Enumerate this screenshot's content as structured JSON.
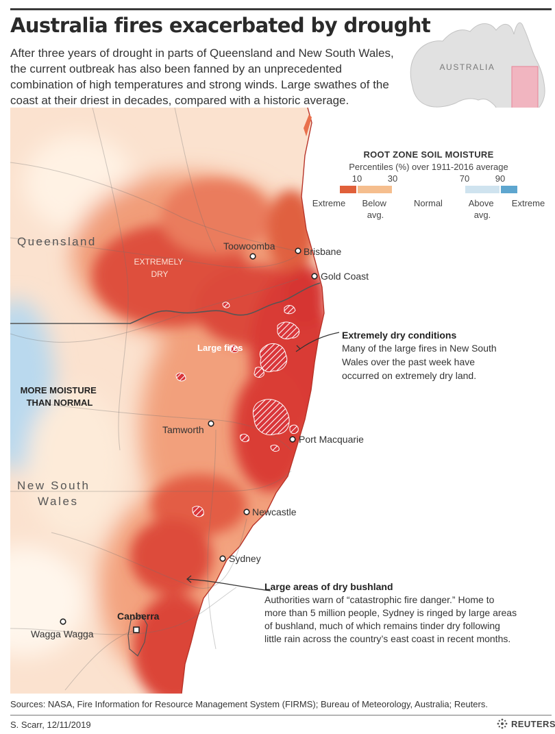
{
  "header": {
    "title": "Australia fires exacerbated by drought",
    "intro": "After three years of drought in parts of Queensland and New South Wales, the current outbreak has also been fanned by an unprecedented combination of high temperatures and strong winds. Large swathes of the coast at their driest in decades, compared with a historic average."
  },
  "inset_map": {
    "label": "AUSTRALIA",
    "highlight_color": "#f6a6b4"
  },
  "legend": {
    "title": "ROOT ZONE SOIL MOISTURE",
    "subtitle": "Percentiles (%) over 1911-2016 average",
    "ticks": [
      "10",
      "30",
      "70",
      "90"
    ],
    "categories": [
      {
        "lines": [
          "Extreme"
        ],
        "color": "#e0603a"
      },
      {
        "lines": [
          "Below",
          "avg."
        ],
        "color": "#f5be8e"
      },
      {
        "lines": [
          "Normal"
        ],
        "color": "#ffffff"
      },
      {
        "lines": [
          "Above",
          "avg."
        ],
        "color": "#cfe3ef"
      },
      {
        "lines": [
          "Extreme"
        ],
        "color": "#5ea6cf"
      }
    ]
  },
  "map": {
    "regions": [
      {
        "text": "Queensland"
      },
      {
        "lines": [
          "New South",
          "Wales"
        ]
      }
    ],
    "zone_labels": [
      {
        "lines": [
          "EXTREMELY",
          "DRY"
        ]
      },
      {
        "lines": [
          "MORE MOISTURE",
          "THAN NORMAL"
        ]
      }
    ],
    "fires_label": "Large fires",
    "cities": [
      "Toowoomba",
      "Brisbane",
      "Gold Coast",
      "Tamworth",
      "Port Macquarie",
      "Newcastle",
      "Sydney",
      "Wagga Wagga",
      "Canberra"
    ],
    "callouts": [
      {
        "title": "Extremely dry conditions",
        "lines": [
          "Many of the large fires in New South",
          "Wales over the past week have",
          "occurred on extremely dry land."
        ]
      },
      {
        "title": "Large areas of dry bushland",
        "lines": [
          "Authorities warn of “catastrophic fire danger.” Home to",
          "more than 5 million people, Sydney is ringed by large areas",
          "of bushland, much of which remains tinder dry following",
          "little rain across the country’s east coast in recent months."
        ]
      }
    ]
  },
  "footer": {
    "sources": "Sources: NASA, Fire Information for Resource Management System (FIRMS); Bureau of Meteorology, Australia; Reuters.",
    "credit": "S. Scarr,  12/11/2019",
    "brand": "REUTERS"
  }
}
